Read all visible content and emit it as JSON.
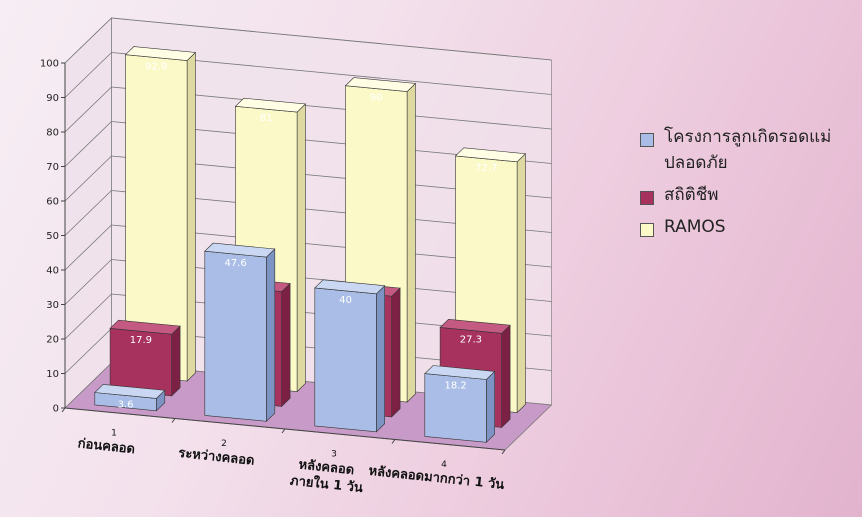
{
  "chart_data": {
    "type": "bar",
    "categories": [
      {
        "number": "1",
        "lines": [
          "ก่อนคลอด"
        ]
      },
      {
        "number": "2",
        "lines": [
          "ระหว่างคลอด"
        ]
      },
      {
        "number": "3",
        "lines": [
          "หลังคลอด",
          "ภายใน 1 วัน"
        ]
      },
      {
        "number": "4",
        "lines": [
          "หลังคลอดมากกว่า 1 วัน"
        ]
      }
    ],
    "series": [
      {
        "name": "โครงการลูกเกิดรอดแม่ปลอดภัย",
        "values": [
          3.6,
          47.6,
          40,
          18.2
        ],
        "labels": [
          "3.6",
          "47.6",
          "40",
          "18.2"
        ],
        "color": "#a9bde6",
        "top": "#c9d7f2",
        "side": "#7d93c4"
      },
      {
        "name": "สถิติชีพ",
        "values": [
          17.9,
          33.3,
          35,
          27.3
        ],
        "labels": [
          "17.9",
          "33.3",
          "35",
          "27.3"
        ],
        "color": "#a8325e",
        "top": "#c45a82",
        "side": "#7c2143"
      },
      {
        "name": "RAMOS",
        "values": [
          92.9,
          81,
          90,
          72.7
        ],
        "labels": [
          "92.9",
          "81",
          "90",
          "72.7"
        ],
        "color": "#fbf9c8",
        "top": "#fffde3",
        "side": "#ddd9a0"
      }
    ],
    "y_ticks": [
      "0",
      "10",
      "20",
      "30",
      "40",
      "50",
      "60",
      "70",
      "80",
      "90",
      "100"
    ],
    "ylim": [
      0,
      100
    ],
    "grid": true,
    "legend": "right",
    "floor_color": "#c89ac7"
  }
}
